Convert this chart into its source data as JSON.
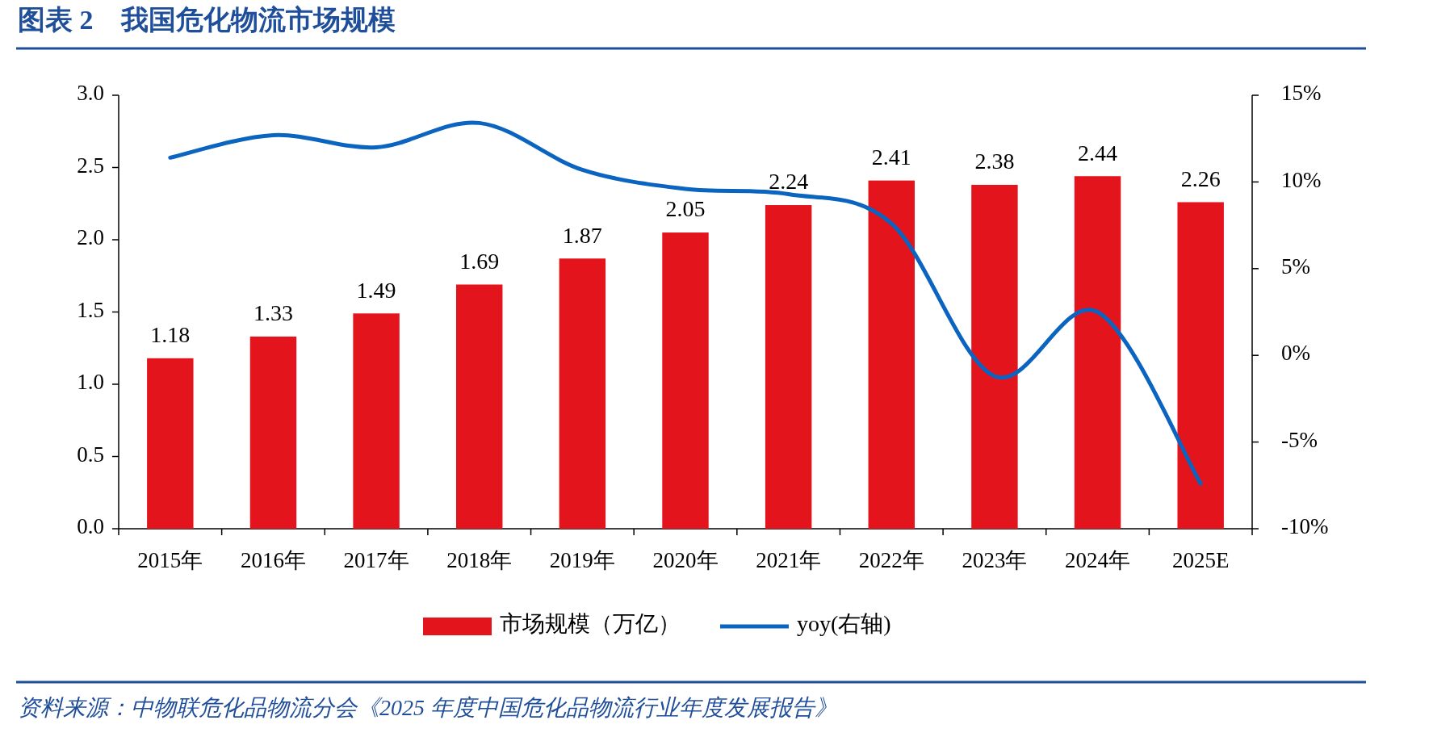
{
  "chart_data": {
    "type": "bar",
    "title": "图表 2　我国危化物流市场规模",
    "categories": [
      "2015年",
      "2016年",
      "2017年",
      "2018年",
      "2019年",
      "2020年",
      "2021年",
      "2022年",
      "2023年",
      "2024年",
      "2025E"
    ],
    "series": [
      {
        "name": "市场规模（万亿）",
        "color": "#e3141c",
        "values": [
          1.18,
          1.33,
          1.49,
          1.69,
          1.87,
          2.05,
          2.24,
          2.41,
          2.38,
          2.44,
          2.26
        ],
        "value_labels": [
          "1.18",
          "1.33",
          "1.49",
          "1.69",
          "1.87",
          "2.05",
          "2.24",
          "2.41",
          "2.38",
          "2.44",
          "2.26"
        ]
      },
      {
        "name": "yoy(右轴)",
        "type": "line",
        "axis": "y2",
        "color": "#0a64c0",
        "values": [
          11.4,
          12.7,
          12.0,
          13.4,
          10.7,
          9.6,
          9.3,
          7.6,
          -1.2,
          2.5,
          -7.4
        ]
      }
    ],
    "ylim": [
      0,
      3
    ],
    "yticks": [
      {
        "value": 0,
        "label": "0.0"
      },
      {
        "value": 0.5,
        "label": "0.5"
      },
      {
        "value": 1,
        "label": "1.0"
      },
      {
        "value": 1.5,
        "label": "1.5"
      },
      {
        "value": 2,
        "label": "2.0"
      },
      {
        "value": 2.5,
        "label": "2.5"
      },
      {
        "value": 3,
        "label": "3.0"
      }
    ],
    "y2lim": [
      -10,
      15
    ],
    "y2ticks": [
      {
        "value": -10,
        "label": "-10%"
      },
      {
        "value": -5,
        "label": "-5%"
      },
      {
        "value": 0,
        "label": "0%"
      },
      {
        "value": 5,
        "label": "5%"
      },
      {
        "value": 10,
        "label": "10%"
      },
      {
        "value": 15,
        "label": "15%"
      }
    ],
    "legend": "bottom",
    "grid": false,
    "annotations": [
      "资料来源：中物联危化品物流分会《2025 年度中国危化品物流行业年度发展报告》"
    ]
  }
}
